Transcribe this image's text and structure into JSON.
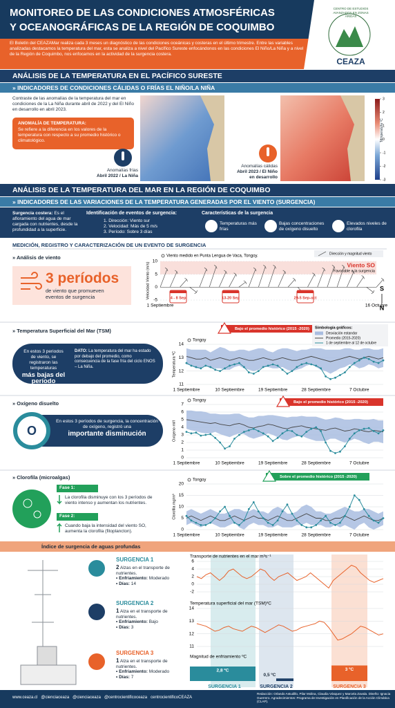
{
  "header": {
    "title_1": "MONITOREO DE LAS CONDICIONES ATMOSFÉRICAS",
    "title_2": "Y OCEANOGRÁFICAS DE LA REGIÓN DE COQUIMBO",
    "intro": "El Boletín del CEAZAMar realiza cada 3 meses un diagnóstico de las condiciones oceánicas y costeras en el último trimestre. Entre las variables analizadas destacamos la temperatura del mar, esta se analiza a nivel del Pacífico Sureste enfocándonos en las condiciones El Niño/La Niña y a nivel de la Región de Coquimbo, nos enfocamos en la actividad de la surgencia costera.",
    "logo_arc": "CENTRO DE ESTUDIOS AVANZADOS EN ZONAS ÁRIDAS",
    "logo_name": "CEAZA"
  },
  "pacific": {
    "title": "ANÁLISIS DE LA TEMPERATURA EN EL PACÍFICO SURESTE",
    "subtitle": "» INDICADORES DE CONDICIONES CÁLIDAS O FRÍAS EL NIÑO/LA NIÑA",
    "text": "Contraste de las anomalías de la temperatura del mar en condiciones de la La Niña durante abril de 2022 y del El Niño en desarrollo en abril 2023.",
    "box_title": "ANOMALÍA DE TEMPERATURA:",
    "box_text": "Se refiere a la diferencia en los valores de la temperatura con respecto a su promedio histórico o climatológico.",
    "cold_label": "Anomalías frías",
    "cold_date": "Abril 2022 / La Niña",
    "warm_label": "Anomalías cálidas",
    "warm_date": "Abril 2023 / El Niño en desarrollo",
    "colorbar_title": "Temperatura ºC",
    "colorbar_ticks": [
      3,
      2,
      1,
      0,
      -1,
      -2,
      -3
    ]
  },
  "coquimbo": {
    "title": "ANÁLISIS DE LA TEMPERATURA DEL MAR EN LA REGIÓN DE COQUIMBO",
    "subtitle": "» INDICADORES DE LAS VARIACIONES DE LA TEMPERATURA GENERADAS POR EL VIENTO (SURGENCIA)",
    "coastal_title": "Surgencia costera:",
    "coastal_text": "Es el afloramiento del agua de mar cargada con nutrientes, desde la profundidad a la superficie.",
    "events_title": "Identificación de eventos de surgencia:",
    "events": [
      "1. Dirección: Viento sur",
      "2. Velocidad: Más de 5 m/s",
      "3. Período: Sobre 3 días"
    ],
    "features_title": "Características de la surgencia",
    "features": [
      "Temperaturas más frías",
      "Bajas concentraciones de oxígeno disuelto",
      "Elevados niveles de clorofila"
    ],
    "measure_title": "MEDICIÓN, REGISTRO Y CARACTERIZACIÓN DE UN EVENTO DE SURGENCIA"
  },
  "wind_panel": {
    "title": "» Análisis de viento",
    "big": "3 períodos",
    "text": "de viento que promueven eventos de surgencia"
  },
  "sst_panel": {
    "title": "» Temperatura Superficial del Mar (TSM)",
    "text": "En estos 3 periodos de viento, se registraron las temperaturas",
    "big": "más bajas del período",
    "dato_title": "DATO:",
    "dato_text": "La temperatura del mar ha estado por debajo del promedio, como consecuencia de la fase fría del ciclo ENOS – La Niña."
  },
  "oxygen_panel": {
    "title": "» Oxígeno disuelto",
    "text": "En estos 3 períodos de surgencia, la concentración de oxígeno, registró una",
    "big": "importante disminución"
  },
  "chl_panel": {
    "title": "» Clorofila (microalgas)",
    "phase1": "Fase 1:",
    "phase1_text": "La clorofila disminuye con los 3 períodos de viento intenso y aumentan los nutrientes.",
    "phase2": "Fase 2:",
    "phase2_text": "Cuando baja la intensidad del viento SO, aumenta la clorofila (fitoplancton)."
  },
  "index": {
    "title": "Índice de surgencia de aguas profundas",
    "cooling_label": "• Enfriamiento:",
    "days_label": "• Días:",
    "events": [
      {
        "title": "SURGENCIA 1",
        "count": 2,
        "text": "Alzas en el transporte de nutrientes.",
        "cooling": "Moderado",
        "days": 14
      },
      {
        "title": "SURGENCIA 2",
        "count": 1,
        "text": "Alza en el transporte de nutrientes.",
        "cooling": "Bajo",
        "days": 3
      },
      {
        "title": "SURGENCIA 3",
        "count": 1,
        "text": "Alza en el transporte de nutrientes.",
        "cooling": "Moderado",
        "days": 7
      }
    ]
  },
  "footer": {
    "links": [
      "www.ceaza.cl",
      "@cienciaceaza",
      "@cienciaceaza",
      "@centrocientificoceaza",
      "centrocientificoCEAZA"
    ],
    "credits": "Redacción: Orlando Astudillo, Pilar Molina, Claudia Vásquez y Marcela Zavala. Diseño: Ignacia Guerrero. Agradecimientos: Programa de Investigación en Planificación de la Acción Climática (CLAP)."
  },
  "chart_data": [
    {
      "type": "vector",
      "title": "Viento medido en Punta Lengua de Vaca, Tongoy.",
      "legend": "Dirección y magnitud viento",
      "ylabel": "Velocidad Viento (m/s)",
      "categories": [
        "1 Septiembre",
        null,
        null,
        null,
        null,
        null,
        null,
        null,
        null,
        null,
        null,
        null,
        null,
        null,
        null,
        null,
        null,
        null,
        null,
        null,
        null,
        null,
        "16 Octubre"
      ],
      "values": [
        7,
        6,
        3,
        -2,
        7,
        8,
        6,
        5,
        2,
        7,
        8,
        8,
        6,
        3,
        -3,
        5,
        7,
        8,
        8,
        6,
        4,
        -2,
        3
      ],
      "color": "#555555",
      "ylim": [
        -5,
        10
      ],
      "yticks": [
        -5,
        0,
        5,
        10
      ],
      "annotation": "Viento SO",
      "annotation_sub": "Favorable a la surgencia",
      "periods": [
        "4 - 8 Sep",
        "13-20 Sep",
        "29-5 Sep-oct"
      ],
      "compass": [
        "S",
        "N"
      ]
    },
    {
      "type": "line",
      "title": "Tongoy",
      "ylabel": "Temperatura ºC",
      "banner": "Bajo el promedio histórico (2015 -2020)",
      "banner_color": "#d9342b",
      "legend_title": "Simbología gráficos:",
      "categories": [
        "1 Septiembre",
        null,
        null,
        null,
        null,
        null,
        null,
        null,
        null,
        "10 Septiembre",
        null,
        null,
        null,
        null,
        null,
        null,
        null,
        null,
        "19 Septiembre",
        null,
        null,
        null,
        null,
        null,
        null,
        null,
        null,
        "28 Septiembre",
        null,
        null,
        null,
        null,
        null,
        null,
        null,
        null,
        "7 Octubre",
        null,
        null,
        null,
        null,
        null
      ],
      "ylim": [
        11,
        14
      ],
      "yticks": [
        11,
        12,
        13,
        14
      ],
      "grid": true,
      "series": [
        {
          "name": "Desviación estandar",
          "color": "#a9bde0",
          "values": [
            0.6,
            0.6,
            0.7,
            0.7,
            0.6,
            0.6,
            0.7,
            0.8,
            0.8,
            0.7,
            0.6,
            0.6,
            0.7,
            0.7,
            0.8,
            0.8,
            0.7,
            0.6,
            0.6,
            0.7,
            0.7,
            0.8,
            0.8,
            0.7,
            0.7,
            0.6,
            0.6,
            0.7,
            0.8,
            0.8,
            0.9,
            0.8,
            0.7,
            0.7,
            0.6,
            0.6,
            0.7,
            0.7,
            0.6,
            0.6,
            0.7,
            0.7
          ]
        },
        {
          "name": "Promedio (2015-2020)",
          "color": "#444444",
          "values": [
            13.1,
            13.0,
            12.9,
            12.9,
            13.0,
            12.8,
            12.9,
            13.0,
            12.9,
            12.8,
            12.9,
            13.0,
            12.9,
            12.8,
            12.8,
            12.9,
            13.0,
            12.9,
            12.8,
            12.9,
            13.0,
            12.9,
            12.8,
            12.8,
            12.9,
            13.0,
            13.1,
            13.0,
            12.9,
            12.8,
            12.7,
            12.8,
            12.9,
            13.0,
            13.1,
            13.0,
            12.9,
            13.0,
            13.1,
            13.0,
            12.9,
            13.0
          ]
        },
        {
          "name": "1 de septiembre al 12 de octubre",
          "color": "#2a8c9c",
          "values": [
            12.6,
            12.4,
            12.3,
            12.2,
            12.4,
            12.3,
            12.1,
            12.0,
            12.2,
            12.4,
            12.5,
            12.6,
            12.3,
            11.9,
            11.8,
            12.0,
            12.3,
            12.4,
            12.5,
            12.4,
            12.1,
            11.8,
            12.0,
            12.3,
            12.5,
            12.6,
            12.5,
            12.4,
            12.2,
            11.6,
            11.4,
            11.5,
            11.7,
            11.9,
            12.3,
            12.6,
            12.8,
            13.0,
            12.9,
            12.7,
            12.6,
            12.8
          ]
        }
      ]
    },
    {
      "type": "line",
      "title": "Tongoy",
      "ylabel": "Oxígeno ml/l",
      "banner": "Bajo el promedio histórico (2015 -2020)",
      "banner_color": "#d9342b",
      "categories": [
        "1 Septiembre",
        null,
        null,
        null,
        null,
        null,
        null,
        null,
        null,
        "10 Septiembre",
        null,
        null,
        null,
        null,
        null,
        null,
        null,
        null,
        "19 Septiembre",
        null,
        null,
        null,
        null,
        null,
        null,
        null,
        null,
        "28 Septiembre",
        null,
        null,
        null,
        null,
        null,
        null,
        null,
        null,
        "7 Octubre",
        null,
        null,
        null,
        null,
        null
      ],
      "ylim": [
        0,
        7
      ],
      "yticks": [
        0,
        1,
        2,
        3,
        4,
        5,
        6,
        7
      ],
      "grid": true,
      "series": [
        {
          "color": "#a9bde0",
          "values": [
            1.2,
            1.3,
            1.3,
            1.4,
            1.4,
            1.3,
            1.2,
            1.3,
            1.4,
            1.5,
            1.4,
            1.3,
            1.2,
            1.3,
            1.4,
            1.4,
            1.3,
            1.2,
            1.3,
            1.4,
            1.5,
            1.5,
            1.4,
            1.3,
            1.3,
            1.4,
            1.5,
            1.6,
            1.5,
            1.4,
            1.3,
            1.4,
            1.5,
            1.5,
            1.4,
            1.3,
            1.4,
            1.5,
            1.6,
            1.5,
            1.4,
            1.5
          ]
        },
        {
          "color": "#444444",
          "values": [
            5.0,
            4.9,
            4.8,
            4.7,
            4.6,
            4.5,
            4.6,
            4.4,
            4.3,
            4.2,
            4.4,
            4.5,
            4.3,
            4.0,
            3.9,
            4.1,
            4.2,
            4.4,
            4.3,
            4.1,
            3.9,
            3.8,
            4.0,
            4.1,
            4.2,
            4.0,
            3.9,
            3.8,
            3.7,
            3.6,
            3.8,
            3.9,
            3.7,
            3.5,
            3.6,
            3.8,
            3.7,
            3.5,
            3.4,
            3.6,
            3.5,
            3.4
          ]
        },
        {
          "color": "#2a8c9c",
          "values": [
            3.4,
            3.2,
            3.3,
            2.9,
            3.0,
            3.1,
            2.6,
            2.0,
            1.2,
            1.5,
            2.5,
            3.0,
            3.4,
            3.6,
            3.8,
            3.5,
            3.2,
            2.8,
            2.2,
            2.6,
            3.2,
            3.6,
            3.5,
            3.0,
            2.8,
            3.4,
            3.8,
            4.0,
            3.5,
            2.0,
            0.9,
            0.6,
            0.8,
            1.5,
            2.5,
            3.2,
            3.6,
            3.8,
            3.9,
            3.5,
            3.2,
            3.6
          ]
        }
      ]
    },
    {
      "type": "line",
      "title": "Tongoy",
      "ylabel": "Clorofila mg/m³",
      "banner": "Sobre el promedio histórico (2015 -2020)",
      "banner_color": "#22a05a",
      "categories": [
        "1 Septiembre",
        null,
        null,
        null,
        null,
        null,
        null,
        null,
        null,
        "10 Septiembre",
        null,
        null,
        null,
        null,
        null,
        null,
        null,
        null,
        "19 Septiembre",
        null,
        null,
        null,
        null,
        null,
        null,
        null,
        null,
        "28 Septiembre",
        null,
        null,
        null,
        null,
        null,
        null,
        null,
        null,
        "7 Octubre",
        null,
        null,
        null,
        null,
        null
      ],
      "ylim": [
        0,
        20
      ],
      "yticks": [
        0,
        5,
        10,
        15,
        20
      ],
      "grid": true,
      "series": [
        {
          "color": "#a9bde0",
          "values": [
            3,
            3,
            3,
            3,
            3,
            3,
            3,
            3,
            3,
            3,
            3,
            4,
            4,
            3,
            3,
            3,
            3,
            3,
            4,
            4,
            4,
            3,
            3,
            3,
            4,
            4,
            4,
            3,
            3,
            3,
            3,
            3,
            4,
            4,
            4,
            4,
            3,
            3,
            4,
            4,
            3,
            3
          ]
        },
        {
          "color": "#444444",
          "values": [
            5,
            6,
            5,
            4,
            5,
            6,
            5,
            4,
            4,
            5,
            6,
            5,
            4,
            5,
            6,
            5,
            5,
            4,
            5,
            6,
            5,
            4,
            4,
            5,
            6,
            7,
            6,
            5,
            5,
            4,
            4,
            5,
            5,
            6,
            5,
            4,
            5,
            6,
            5,
            4,
            4,
            5
          ]
        },
        {
          "color": "#2a8c9c",
          "values": [
            6,
            4,
            3,
            2,
            2,
            3,
            5,
            8,
            10,
            6,
            3,
            2,
            4,
            9,
            12,
            8,
            5,
            3,
            2,
            4,
            8,
            11,
            7,
            4,
            2,
            1,
            1,
            2,
            4,
            6,
            3,
            2,
            3,
            6,
            10,
            15,
            13,
            9,
            6,
            4,
            3,
            5
          ]
        }
      ]
    },
    {
      "type": "line",
      "title": "Transporte de nutrientes en el mar m³s⁻¹",
      "ylim": [
        -2,
        6
      ],
      "yticks": [
        -2,
        0,
        2,
        4,
        6
      ],
      "grid": true,
      "series": [
        {
          "color": "#e8622a",
          "values": [
            2,
            1.5,
            2.5,
            3,
            2,
            1,
            2,
            3.5,
            4,
            3,
            2,
            1.5,
            2,
            3,
            4,
            3.5,
            2,
            1,
            2,
            2.5,
            3,
            2,
            1,
            1.5,
            2,
            3,
            2,
            1,
            0,
            -1,
            1,
            2,
            3,
            4,
            5,
            4.5,
            3,
            2,
            1,
            0.5,
            1,
            1.5
          ]
        }
      ]
    },
    {
      "type": "line",
      "title": "Temperatura superficial del mar (TSM)ºC",
      "ylim": [
        11,
        14
      ],
      "yticks": [
        11,
        12,
        13,
        14
      ],
      "grid": true,
      "series": [
        {
          "color": "#e8622a",
          "values": [
            12.8,
            12.7,
            12.6,
            12.4,
            12.2,
            12.3,
            12.5,
            12.6,
            12.4,
            12.3,
            12.2,
            12.4,
            12.6,
            12.5,
            12.3,
            12.1,
            12.3,
            12.5,
            12.7,
            12.6,
            12.4,
            12.2,
            12.3,
            12.5,
            12.6,
            12.7,
            12.8,
            13.0,
            12.9,
            12.5,
            12.0,
            11.5,
            11.6,
            11.8,
            12.0,
            12.3,
            12.6,
            12.5,
            12.3,
            12.1,
            11.9,
            12.0
          ]
        }
      ]
    },
    {
      "type": "bar",
      "title": "Magnitud de enfriamiento ºC",
      "categories": [
        "SURGENCIA 1",
        "SURGENCIA 2",
        "SURGENCIA 3"
      ],
      "values": [
        2.8,
        0.5,
        3
      ],
      "value_labels": [
        "2,8 ºC",
        "0,5 ºC",
        "3 ºC"
      ],
      "colors": [
        "#2a8c9c",
        "#1d3e66",
        "#e8622a"
      ]
    }
  ]
}
